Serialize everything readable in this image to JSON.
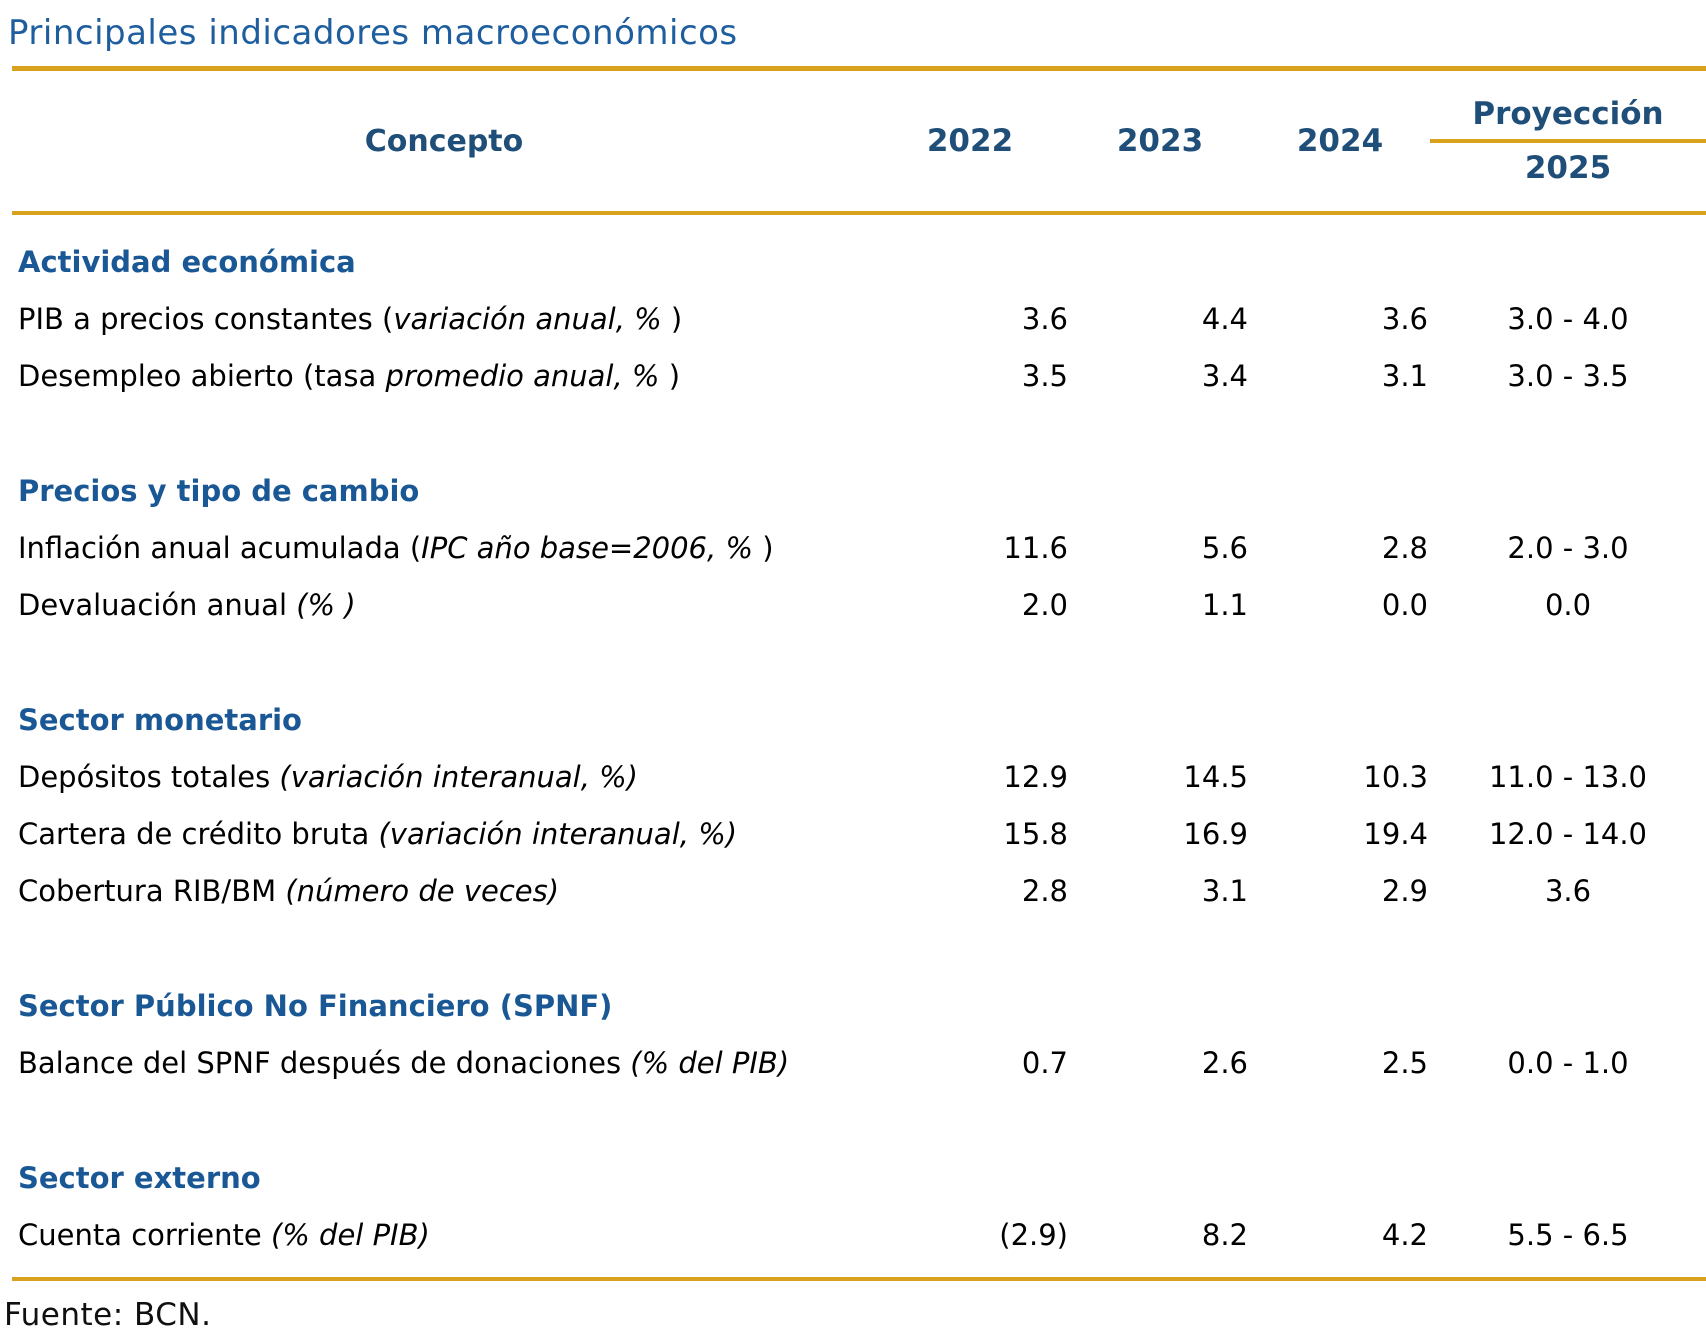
{
  "title": "Principales indicadores macroeconómicos",
  "source": "Fuente: BCN.",
  "colors": {
    "title_blue": "#1E5E9E",
    "header_navy": "#1F4E79",
    "section_blue": "#1A5795",
    "gold_rule": "#D9A21E",
    "body_text": "#000000"
  },
  "table": {
    "concept_header": "Concepto",
    "year_headers": [
      "2022",
      "2023",
      "2024"
    ],
    "projection_header": "Proyección",
    "projection_year": "2025",
    "sections": [
      {
        "name": "Actividad económica",
        "rows": [
          {
            "prefix": "PIB a precios constantes (",
            "italic": "variación anual, %",
            "suffix": " )",
            "values": [
              "3.6",
              "4.4",
              "3.6",
              "3.0 - 4.0"
            ]
          },
          {
            "prefix": "Desempleo abierto (tasa ",
            "italic": "promedio anual, %",
            "suffix": " )",
            "values": [
              "3.5",
              "3.4",
              "3.1",
              "3.0 - 3.5"
            ]
          }
        ]
      },
      {
        "name": "Precios y tipo de cambio",
        "rows": [
          {
            "prefix": "Inflación anual acumulada (",
            "italic": "IPC año base=2006, %",
            "suffix": " )",
            "values": [
              "11.6",
              "5.6",
              "2.8",
              "2.0 - 3.0"
            ]
          },
          {
            "prefix": "Devaluación anual ",
            "italic": "(% )",
            "suffix": "",
            "values": [
              "2.0",
              "1.1",
              "0.0",
              "0.0"
            ]
          }
        ]
      },
      {
        "name": "Sector monetario",
        "rows": [
          {
            "prefix": "Depósitos totales ",
            "italic": "(variación interanual, %)",
            "suffix": "",
            "values": [
              "12.9",
              "14.5",
              "10.3",
              "11.0 - 13.0"
            ]
          },
          {
            "prefix": "Cartera de crédito bruta ",
            "italic": "(variación interanual, %)",
            "suffix": "",
            "values": [
              "15.8",
              "16.9",
              "19.4",
              "12.0 - 14.0"
            ]
          },
          {
            "prefix": "Cobertura RIB/BM ",
            "italic": "(número de veces)",
            "suffix": "",
            "values": [
              "2.8",
              "3.1",
              "2.9",
              "3.6"
            ]
          }
        ]
      },
      {
        "name": "Sector Público No Financiero (SPNF)",
        "rows": [
          {
            "prefix": "Balance del SPNF después de donaciones ",
            "italic": "(% del PIB)",
            "suffix": "",
            "values": [
              "0.7",
              "2.6",
              "2.5",
              "0.0 - 1.0"
            ]
          }
        ]
      },
      {
        "name": "Sector externo",
        "rows": [
          {
            "prefix": "Cuenta corriente ",
            "italic": "(% del PIB)",
            "suffix": "",
            "values": [
              "(2.9)",
              "8.2",
              "4.2",
              "5.5 - 6.5"
            ]
          }
        ]
      }
    ]
  }
}
